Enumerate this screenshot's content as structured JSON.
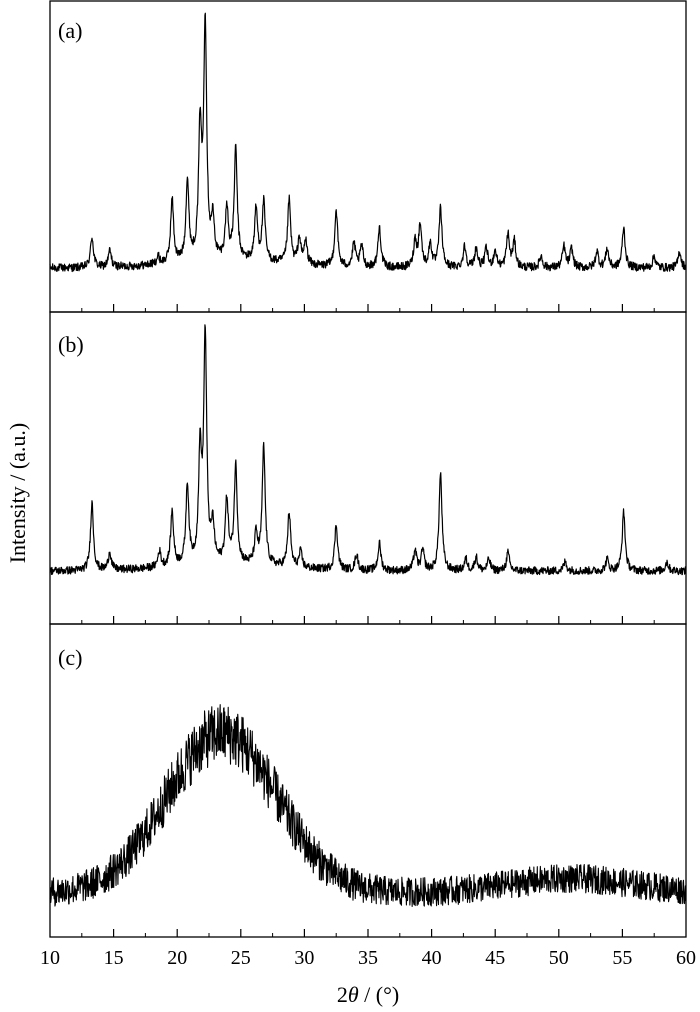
{
  "chart_data": {
    "type": "line",
    "xlabel": "2θ / (°)",
    "xlabel_parts": {
      "var": "2",
      "theta": "θ",
      "unit": " / (°)"
    },
    "ylabel": "Intensity / (a.u.)",
    "xlim": [
      10,
      60
    ],
    "x_ticks": [
      10,
      15,
      20,
      25,
      30,
      35,
      40,
      45,
      50,
      55,
      60
    ],
    "grid": false,
    "legend": "none",
    "line_color": "#000000",
    "panels": [
      {
        "label": "(a)",
        "kind": "crystalline",
        "peaks": [
          [
            13.3,
            0.13
          ],
          [
            14.7,
            0.07
          ],
          [
            18.5,
            0.03
          ],
          [
            19.6,
            0.27
          ],
          [
            20.8,
            0.34
          ],
          [
            21.8,
            0.55
          ],
          [
            22.2,
            1.0
          ],
          [
            22.8,
            0.16
          ],
          [
            23.9,
            0.22
          ],
          [
            24.6,
            0.47
          ],
          [
            26.2,
            0.22
          ],
          [
            26.8,
            0.25
          ],
          [
            28.8,
            0.27
          ],
          [
            29.6,
            0.11
          ],
          [
            30.1,
            0.1
          ],
          [
            32.5,
            0.24
          ],
          [
            33.9,
            0.1
          ],
          [
            34.5,
            0.09
          ],
          [
            35.9,
            0.17
          ],
          [
            38.7,
            0.11
          ],
          [
            39.1,
            0.18
          ],
          [
            39.9,
            0.1
          ],
          [
            40.7,
            0.25
          ],
          [
            42.6,
            0.09
          ],
          [
            43.5,
            0.08
          ],
          [
            44.3,
            0.08
          ],
          [
            45.0,
            0.07
          ],
          [
            46.0,
            0.14
          ],
          [
            46.5,
            0.11
          ],
          [
            48.6,
            0.05
          ],
          [
            50.4,
            0.09
          ],
          [
            51.0,
            0.08
          ],
          [
            53.0,
            0.07
          ],
          [
            53.8,
            0.08
          ],
          [
            55.1,
            0.17
          ],
          [
            57.5,
            0.05
          ],
          [
            59.5,
            0.07
          ]
        ]
      },
      {
        "label": "(b)",
        "kind": "crystalline",
        "peaks": [
          [
            13.3,
            0.3
          ],
          [
            14.7,
            0.08
          ],
          [
            18.6,
            0.07
          ],
          [
            19.6,
            0.24
          ],
          [
            20.8,
            0.35
          ],
          [
            21.8,
            0.48
          ],
          [
            22.2,
            1.0
          ],
          [
            22.8,
            0.16
          ],
          [
            23.9,
            0.28
          ],
          [
            24.6,
            0.43
          ],
          [
            26.2,
            0.13
          ],
          [
            26.8,
            0.52
          ],
          [
            28.8,
            0.24
          ],
          [
            29.7,
            0.07
          ],
          [
            32.5,
            0.2
          ],
          [
            34.1,
            0.07
          ],
          [
            35.9,
            0.12
          ],
          [
            38.7,
            0.09
          ],
          [
            39.3,
            0.09
          ],
          [
            40.7,
            0.43
          ],
          [
            42.7,
            0.05
          ],
          [
            43.5,
            0.06
          ],
          [
            44.5,
            0.05
          ],
          [
            46.0,
            0.08
          ],
          [
            50.5,
            0.04
          ],
          [
            53.8,
            0.05
          ],
          [
            55.1,
            0.26
          ],
          [
            58.5,
            0.04
          ]
        ]
      },
      {
        "label": "(c)",
        "kind": "amorphous",
        "halos": [
          [
            23.5,
            1.0,
            4.3
          ],
          [
            51.0,
            0.09,
            5.0
          ]
        ]
      }
    ]
  }
}
